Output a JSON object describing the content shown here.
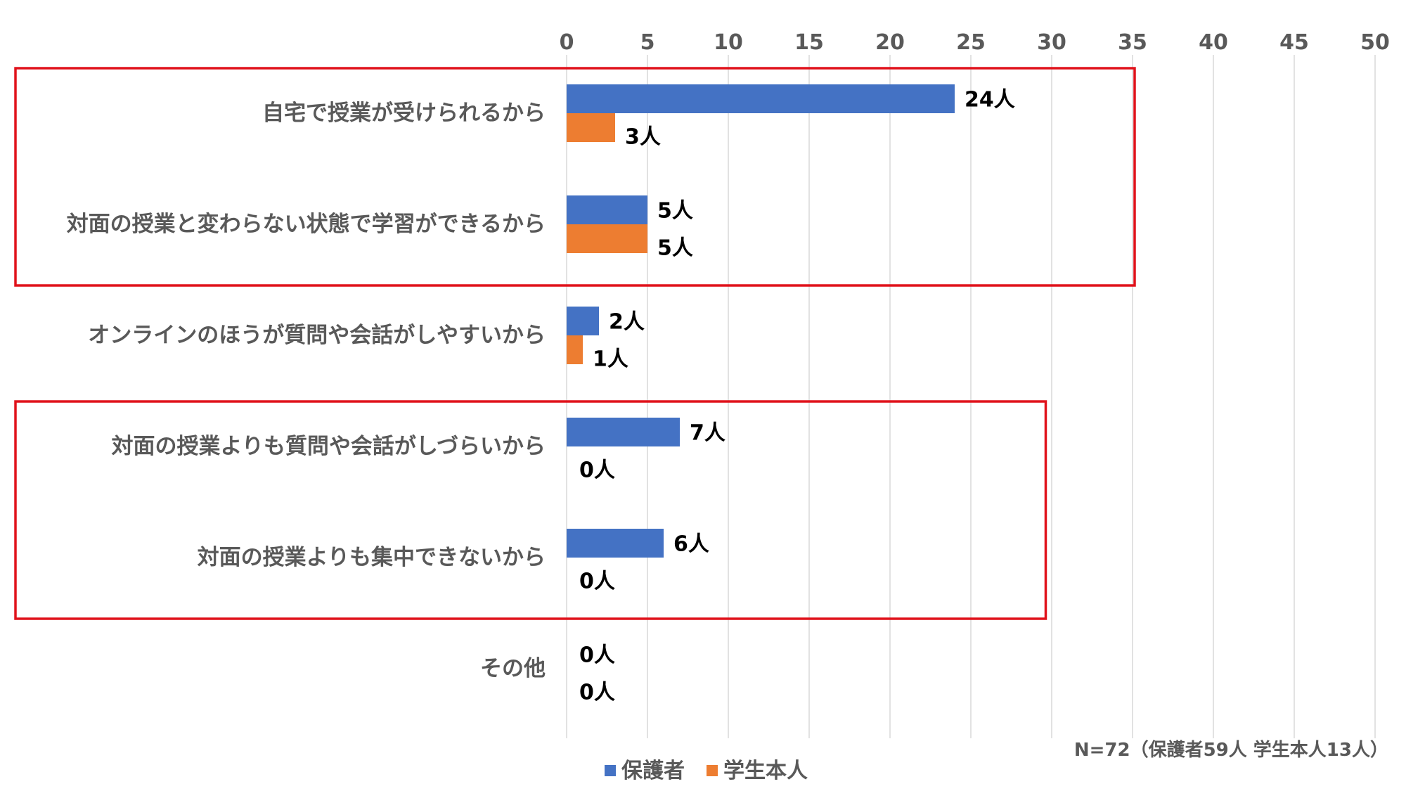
{
  "chart_data": {
    "type": "bar",
    "orientation": "horizontal",
    "categories": [
      "自宅で授業が受けられるから",
      "対面の授業と変わらない状態で学習ができるから",
      "オンラインのほうが質問や会話がしやすいから",
      "対面の授業よりも質問や会話がしづらいから",
      "対面の授業よりも集中できないから",
      "その他"
    ],
    "series": [
      {
        "name": "保護者",
        "color": "#4472C4",
        "values": [
          24,
          5,
          2,
          7,
          6,
          0
        ],
        "labels": [
          "24人",
          "5人",
          "2人",
          "7人",
          "6人",
          "0人"
        ]
      },
      {
        "name": "学生本人",
        "color": "#ED7D31",
        "values": [
          3,
          5,
          1,
          0,
          0,
          0
        ],
        "labels": [
          "3人",
          "5人",
          "1人",
          "0人",
          "0人",
          "0人"
        ]
      }
    ],
    "xlim": [
      0,
      50
    ],
    "xticks": [
      "0",
      "5",
      "10",
      "15",
      "20",
      "25",
      "30",
      "35",
      "40",
      "45",
      "50"
    ],
    "x_axis_position": "top",
    "grid": true,
    "legend_position": "bottom",
    "note": "N=72（保護者59人 学生本人13人）",
    "highlight_color": "#E0121B",
    "highlight_groups": [
      {
        "category_range": [
          0,
          1
        ],
        "x_extent": 35
      },
      {
        "category_range": [
          3,
          4
        ],
        "x_extent": 29.5
      }
    ]
  }
}
